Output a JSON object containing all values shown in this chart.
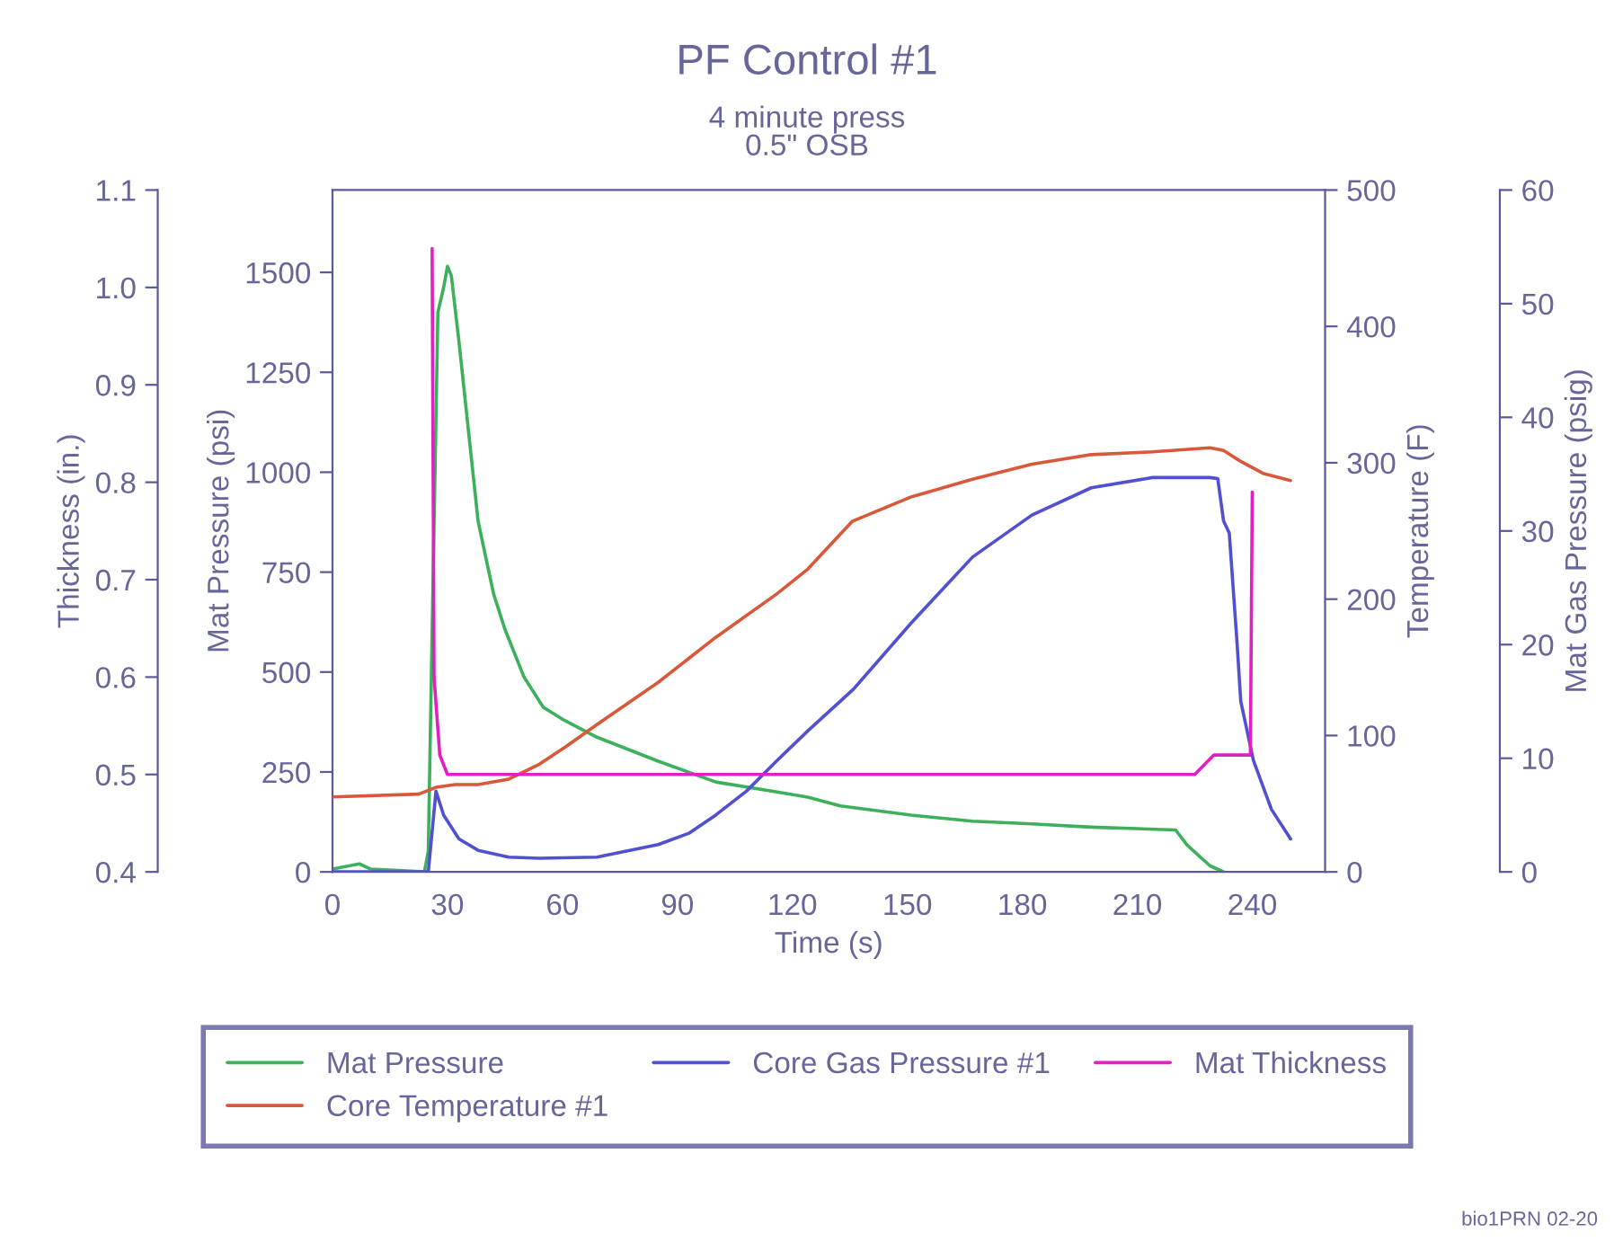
{
  "chart_data": [
    {
      "type": "line",
      "title": "PF Control #1",
      "subtitle": "4 minute press\n0.5\" OSB",
      "xlabel": "Time (s)",
      "ylabel": "Mat Pressure (psi)",
      "y2label": "Temperature (F)",
      "y3label": "Mat Gas Pressure (psig)",
      "xlim": [
        0,
        259
      ],
      "xticks": [
        0,
        30,
        60,
        90,
        120,
        150,
        180,
        210,
        240
      ],
      "ylim": [
        0,
        1706
      ],
      "yticks": [
        0,
        250,
        500,
        750,
        1000,
        1250,
        1500
      ],
      "y2lim": [
        0,
        500
      ],
      "y2ticks": [
        0,
        100,
        200,
        300,
        400,
        500
      ],
      "y3lim": [
        0,
        60
      ],
      "y3ticks": [
        0,
        10,
        20,
        30,
        40,
        50,
        60
      ],
      "grid": false,
      "legend": "bottom",
      "marker": "none",
      "line_style": "solid",
      "annotations": [
        "bio1PRN 02-20"
      ],
      "series": [
        {
          "name": "Mat Pressure",
          "color": "#3cb05a",
          "x": [
            0,
            7,
            10,
            24,
            25,
            26,
            27.5,
            29,
            30,
            31,
            33,
            35,
            38,
            42,
            45,
            50,
            55,
            60,
            69,
            85,
            100,
            116,
            124,
            132.5,
            151,
            167,
            182.5,
            198,
            220,
            223,
            229,
            232.5
          ],
          "values": [
            7,
            20,
            7,
            0,
            52,
            600,
            1400,
            1462,
            1515,
            1492,
            1327,
            1147,
            877,
            697,
            607,
            487,
            412,
            382,
            337,
            277,
            225,
            200,
            187,
            165,
            142,
            127,
            120,
            112,
            105,
            67,
            15,
            0
          ]
        },
        {
          "name": "Core Temperature #1",
          "color": "#d9583a",
          "axis": "y2",
          "x": [
            0,
            22.5,
            27,
            32,
            38,
            46,
            54,
            61,
            69,
            85,
            100,
            116,
            124,
            135.6,
            151,
            167,
            182.5,
            198,
            214,
            229,
            232.5,
            237,
            243,
            250
          ],
          "values": [
            55,
            57,
            62,
            64,
            64,
            68,
            79,
            92,
            108,
            139,
            172,
            204,
            222,
            257,
            275,
            288,
            299,
            306,
            308,
            311,
            309,
            301,
            292,
            287
          ]
        },
        {
          "name": "Core Gas Pressure #1",
          "color": "#5050d0",
          "axis": "y3",
          "x": [
            0,
            25,
            27,
            29,
            33,
            38,
            46,
            54,
            69,
            85,
            93,
            100,
            108,
            116,
            124,
            136,
            151,
            167,
            182.5,
            198,
            214,
            229,
            231,
            232.5,
            234,
            236,
            237,
            240.3,
            245,
            250
          ],
          "values": [
            0,
            0,
            7.1,
            5.0,
            2.9,
            1.9,
            1.3,
            1.2,
            1.3,
            2.4,
            3.4,
            5.0,
            7.1,
            9.8,
            12.4,
            16.1,
            21.9,
            27.7,
            31.4,
            33.8,
            34.7,
            34.7,
            34.6,
            30.9,
            29.8,
            20.3,
            15.0,
            9.8,
            5.5,
            2.9
          ]
        }
      ]
    },
    {
      "type": "line",
      "ylabel": "Thickness (in.)",
      "xlim": [
        0,
        259
      ],
      "ylim": [
        0.4,
        1.1
      ],
      "yticks": [
        {
          "value": 0.4,
          "label": "0.4"
        },
        {
          "value": 0.5,
          "label": "0.5"
        },
        {
          "value": 0.6,
          "label": "0.6"
        },
        {
          "value": 0.7,
          "label": "0.7"
        },
        {
          "value": 0.8,
          "label": "0.8"
        },
        {
          "value": 0.9,
          "label": "0.9"
        },
        {
          "value": 1.0,
          "label": "1.0"
        },
        {
          "value": 1.1,
          "label": "1.1"
        }
      ],
      "tick_labels": "y",
      "marker": "none",
      "line_style": "solid",
      "series": [
        {
          "name": "Mat Thickness",
          "color": "#e020c0",
          "x": [
            26,
            26.5,
            28,
            30,
            35,
            45,
            60,
            220,
            225,
            230,
            238,
            239.5,
            240
          ],
          "values": [
            1.04,
            0.6,
            0.52,
            0.5,
            0.5,
            0.5,
            0.5,
            0.5,
            0.5,
            0.52,
            0.52,
            0.52,
            0.79
          ]
        }
      ]
    }
  ]
}
